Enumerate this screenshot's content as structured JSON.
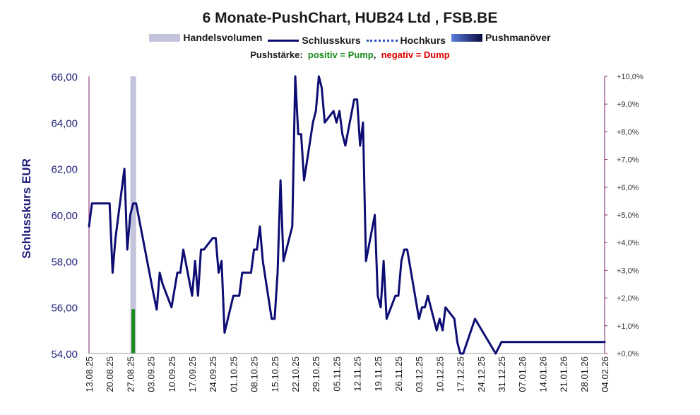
{
  "chart_data": {
    "type": "line",
    "title": "6 Monate-PushChart, HUB24 Ltd , FSB.BE",
    "legend": {
      "placement": "top-center",
      "entries": [
        "Handelsvolumen",
        "Schlusskurs",
        "Hochkurs",
        "Pushmanöver"
      ]
    },
    "push_strength": {
      "label": "Pushstärke:",
      "positive": "positiv = Pump",
      "separator": ",",
      "negative": "negativ = Dump"
    },
    "ylabel": "Schlusskurs EUR",
    "ylim": [
      54,
      66
    ],
    "yticks": [
      "54,00",
      "56,00",
      "58,00",
      "60,00",
      "62,00",
      "64,00",
      "66,00"
    ],
    "y2lim": [
      0,
      10
    ],
    "y2ticks": [
      "+0,0%",
      "+1,0%",
      "+2,0%",
      "+3,0%",
      "+4,0%",
      "+5,0%",
      "+6,0%",
      "+7,0%",
      "+8,0%",
      "+9,0%",
      "+10,0%"
    ],
    "xlim": [
      "2025-08-13",
      "2026-02-04"
    ],
    "xticks": [
      "13.08.25",
      "20.08.25",
      "27.08.25",
      "03.09.25",
      "10.09.25",
      "17.09.25",
      "24.09.25",
      "01.10.25",
      "08.10.25",
      "15.10.25",
      "22.10.25",
      "29.10.25",
      "05.11.25",
      "12.11.25",
      "19.11.25",
      "26.11.25",
      "03.12.25",
      "10.12.25",
      "17.12.25",
      "24.12.25",
      "31.12.25",
      "07.01.26",
      "14.01.26",
      "21.01.26",
      "28.01.26",
      "04.02.26"
    ],
    "grid": false,
    "colors": {
      "close": "#0d0d73",
      "volume": "#c3c3db",
      "pump": "#1a8a1a",
      "axis_left": "#1f1f7a",
      "axis_right": "#7a1f6a"
    },
    "volume_bars": [
      {
        "x": "2025-08-28",
        "value_pct": 10.0
      }
    ],
    "push_bars": [
      {
        "x": "2025-08-28",
        "value_pct": 1.6
      }
    ],
    "series": [
      {
        "name": "Schlusskurs",
        "points": [
          [
            "2025-08-13",
            59.5
          ],
          [
            "2025-08-14",
            60.5
          ],
          [
            "2025-08-15",
            60.5
          ],
          [
            "2025-08-18",
            60.5
          ],
          [
            "2025-08-19",
            60.5
          ],
          [
            "2025-08-20",
            60.5
          ],
          [
            "2025-08-21",
            57.5
          ],
          [
            "2025-08-22",
            59.0
          ],
          [
            "2025-08-25",
            62.0
          ],
          [
            "2025-08-26",
            58.5
          ],
          [
            "2025-08-27",
            60.0
          ],
          [
            "2025-08-28",
            60.5
          ],
          [
            "2025-08-29",
            60.5
          ],
          [
            "2025-09-04",
            56.5
          ],
          [
            "2025-09-05",
            55.9
          ],
          [
            "2025-09-06",
            57.5
          ],
          [
            "2025-09-07",
            57.0
          ],
          [
            "2025-09-10",
            56.0
          ],
          [
            "2025-09-12",
            57.5
          ],
          [
            "2025-09-13",
            57.5
          ],
          [
            "2025-09-14",
            58.5
          ],
          [
            "2025-09-17",
            56.5
          ],
          [
            "2025-09-18",
            58.0
          ],
          [
            "2025-09-19",
            56.5
          ],
          [
            "2025-09-20",
            58.5
          ],
          [
            "2025-09-21",
            58.5
          ],
          [
            "2025-09-24",
            59.0
          ],
          [
            "2025-09-25",
            59.0
          ],
          [
            "2025-09-26",
            57.5
          ],
          [
            "2025-09-27",
            58.0
          ],
          [
            "2025-09-28",
            54.9
          ],
          [
            "2025-10-01",
            56.5
          ],
          [
            "2025-10-02",
            56.5
          ],
          [
            "2025-10-03",
            56.5
          ],
          [
            "2025-10-04",
            57.5
          ],
          [
            "2025-10-05",
            57.5
          ],
          [
            "2025-10-07",
            57.5
          ],
          [
            "2025-10-08",
            58.5
          ],
          [
            "2025-10-09",
            58.5
          ],
          [
            "2025-10-10",
            59.5
          ],
          [
            "2025-10-11",
            58.0
          ],
          [
            "2025-10-14",
            55.5
          ],
          [
            "2025-10-15",
            55.5
          ],
          [
            "2025-10-16",
            57.5
          ],
          [
            "2025-10-17",
            61.5
          ],
          [
            "2025-10-18",
            58.0
          ],
          [
            "2025-10-21",
            59.5
          ],
          [
            "2025-10-22",
            66.0
          ],
          [
            "2025-10-23",
            63.5
          ],
          [
            "2025-10-24",
            63.5
          ],
          [
            "2025-10-25",
            61.5
          ],
          [
            "2025-10-28",
            64.0
          ],
          [
            "2025-10-29",
            64.5
          ],
          [
            "2025-10-30",
            66.0
          ],
          [
            "2025-10-31",
            65.5
          ],
          [
            "2025-11-01",
            64.0
          ],
          [
            "2025-11-04",
            64.5
          ],
          [
            "2025-11-05",
            64.0
          ],
          [
            "2025-11-06",
            64.5
          ],
          [
            "2025-11-07",
            63.5
          ],
          [
            "2025-11-08",
            63.0
          ],
          [
            "2025-11-11",
            65.0
          ],
          [
            "2025-11-12",
            65.0
          ],
          [
            "2025-11-13",
            63.0
          ],
          [
            "2025-11-14",
            64.0
          ],
          [
            "2025-11-15",
            58.0
          ],
          [
            "2025-11-18",
            60.0
          ],
          [
            "2025-11-19",
            56.5
          ],
          [
            "2025-11-20",
            56.0
          ],
          [
            "2025-11-21",
            58.0
          ],
          [
            "2025-11-22",
            55.5
          ],
          [
            "2025-11-25",
            56.5
          ],
          [
            "2025-11-26",
            56.5
          ],
          [
            "2025-11-27",
            58.0
          ],
          [
            "2025-11-28",
            58.5
          ],
          [
            "2025-11-29",
            58.5
          ],
          [
            "2025-12-03",
            55.5
          ],
          [
            "2025-12-04",
            56.0
          ],
          [
            "2025-12-05",
            56.0
          ],
          [
            "2025-12-06",
            56.5
          ],
          [
            "2025-12-09",
            55.0
          ],
          [
            "2025-12-10",
            55.5
          ],
          [
            "2025-12-11",
            55.0
          ],
          [
            "2025-12-12",
            56.0
          ],
          [
            "2025-12-15",
            55.5
          ],
          [
            "2025-12-16",
            54.5
          ],
          [
            "2025-12-17",
            54.0
          ],
          [
            "2025-12-18",
            54.0
          ],
          [
            "2025-12-22",
            55.5
          ],
          [
            "2025-12-29",
            54.0
          ],
          [
            "2025-12-31",
            54.5
          ],
          [
            "2026-02-04",
            54.5
          ]
        ]
      }
    ]
  }
}
